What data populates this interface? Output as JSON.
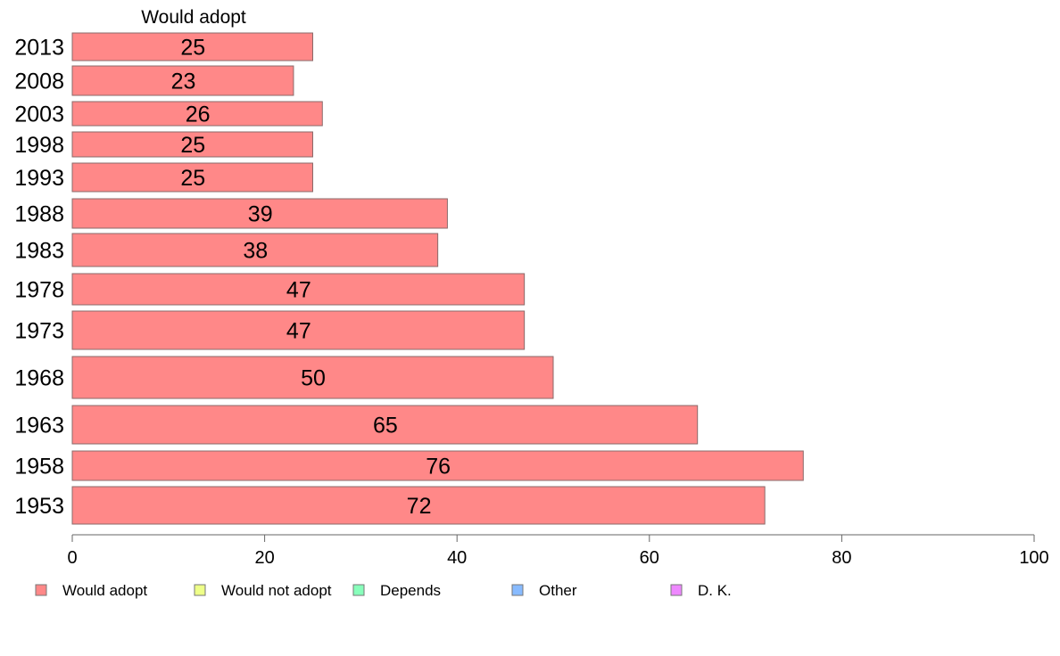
{
  "chart_data": {
    "type": "bar",
    "orientation": "horizontal",
    "stacked": true,
    "column_header": "Would adopt",
    "categories": [
      "2013",
      "2008",
      "2003",
      "1998",
      "1993",
      "1988",
      "1983",
      "1978",
      "1973",
      "1968",
      "1963",
      "1958",
      "1953"
    ],
    "series": [
      {
        "name": "Would adopt",
        "color": "#ff8888",
        "values": [
          25,
          23,
          26,
          25,
          25,
          39,
          38,
          47,
          47,
          50,
          65,
          76,
          72
        ]
      }
    ],
    "legend": [
      {
        "name": "Would adopt",
        "color": "#ff8888"
      },
      {
        "name": "Would not adopt",
        "color": "#eeff88"
      },
      {
        "name": "Depends",
        "color": "#88ffbb"
      },
      {
        "name": "Other",
        "color": "#88bbff"
      },
      {
        "name": "D. K.",
        "color": "#ee88ff"
      }
    ],
    "legend_position": "bottom",
    "xlim": [
      0,
      100
    ],
    "xticks": [
      0,
      20,
      40,
      60,
      80,
      100
    ],
    "grid": false
  }
}
